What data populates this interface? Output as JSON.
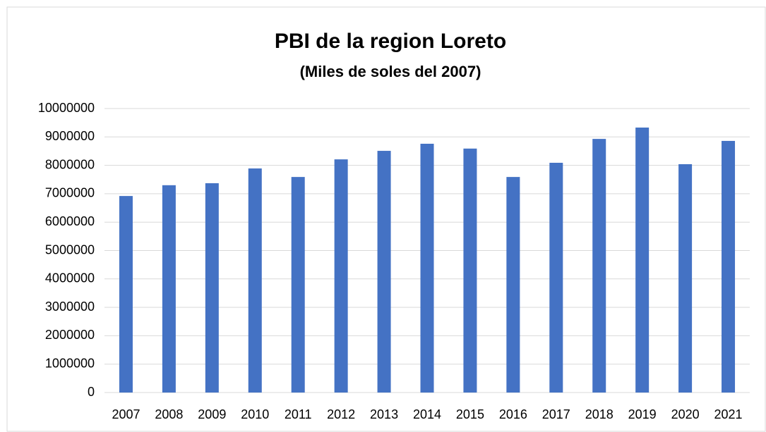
{
  "chart_data": {
    "type": "bar",
    "title": "PBI de la region Loreto",
    "subtitle": "(Miles de soles del 2007)",
    "categories": [
      "2007",
      "2008",
      "2009",
      "2010",
      "2011",
      "2012",
      "2013",
      "2014",
      "2015",
      "2016",
      "2017",
      "2018",
      "2019",
      "2020",
      "2021"
    ],
    "values": [
      6920000,
      7300000,
      7370000,
      7890000,
      7590000,
      8210000,
      8510000,
      8760000,
      8590000,
      7590000,
      8090000,
      8930000,
      9330000,
      8040000,
      8860000
    ],
    "color": "#4472c4",
    "ylim": [
      0,
      10000000
    ],
    "yticks": [
      0,
      1000000,
      2000000,
      3000000,
      4000000,
      5000000,
      6000000,
      7000000,
      8000000,
      9000000,
      10000000
    ],
    "grid": true
  }
}
